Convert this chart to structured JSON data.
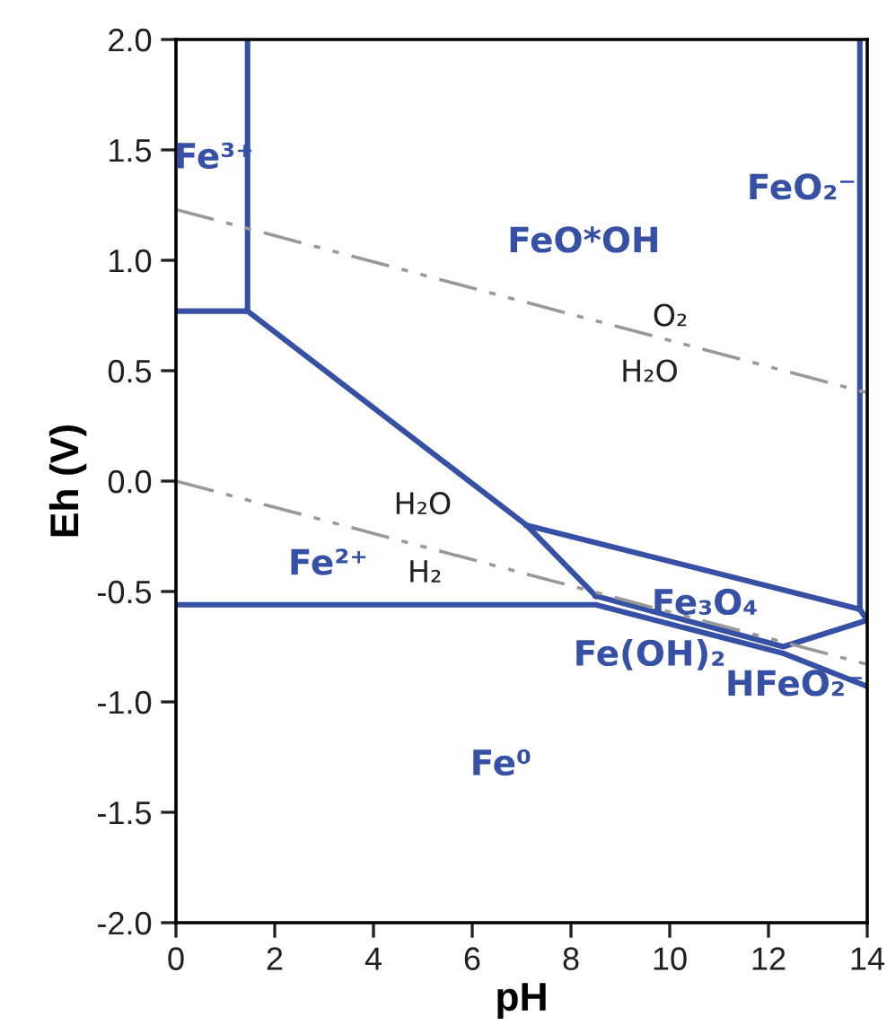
{
  "chart_data": {
    "type": "line",
    "xlabel": "pH",
    "ylabel": "Eh (V)",
    "xlim": [
      0,
      14
    ],
    "xticks": [
      0,
      2,
      4,
      6,
      8,
      10,
      12,
      14
    ],
    "ylim": [
      -2.0,
      2.0
    ],
    "yticks": [
      {
        "value": -2.0,
        "label": "-2.0"
      },
      {
        "value": -1.5,
        "label": "-1.5"
      },
      {
        "value": -1.0,
        "label": "-1.0"
      },
      {
        "value": -0.5,
        "label": "-0.5"
      },
      {
        "value": 0.0,
        "label": "0.0"
      },
      {
        "value": 0.5,
        "label": "0.5"
      },
      {
        "value": 1.0,
        "label": "1.0"
      },
      {
        "value": 1.5,
        "label": "1.5"
      },
      {
        "value": 2.0,
        "label": "2.0"
      }
    ],
    "grid": false,
    "marker": "none",
    "series": [
      {
        "color": "#3550a4",
        "line_style": "solid",
        "x": [
          1.45,
          1.45
        ],
        "values": [
          2.0,
          0.77
        ]
      },
      {
        "color": "#3550a4",
        "line_style": "solid",
        "x": [
          0,
          1.45,
          7.1,
          8.5
        ],
        "values": [
          0.77,
          0.77,
          -0.2,
          -0.52
        ]
      },
      {
        "color": "#3550a4",
        "line_style": "solid",
        "x": [
          0,
          8.5,
          12.3,
          14
        ],
        "values": [
          -0.56,
          -0.56,
          -0.78,
          -0.93
        ]
      },
      {
        "color": "#3550a4",
        "line_style": "solid",
        "x": [
          8.5,
          12.3,
          14
        ],
        "values": [
          -0.52,
          -0.75,
          -0.63
        ]
      },
      {
        "color": "#3550a4",
        "line_style": "solid",
        "x": [
          7.1,
          13.85,
          14
        ],
        "values": [
          -0.2,
          -0.58,
          -0.63
        ]
      },
      {
        "color": "#3550a4",
        "line_style": "solid",
        "x": [
          13.85,
          13.85
        ],
        "values": [
          2.0,
          -0.58
        ]
      },
      {
        "color": "#999999",
        "line_style": "dashed",
        "x": [
          0,
          14
        ],
        "values": [
          1.23,
          0.4
        ]
      },
      {
        "color": "#999999",
        "line_style": "dashed",
        "x": [
          0,
          14
        ],
        "values": [
          0.0,
          -0.83
        ]
      }
    ],
    "annotations": [
      "Fe³⁺",
      "FeO*OH",
      "FeO₂⁻",
      "Fe²⁺",
      "Fe₃O₄",
      "Fe(OH)₂",
      "HFeO₂⁻",
      "Fe⁰",
      "O₂",
      "H₂O",
      "H₂O",
      "H₂"
    ]
  }
}
